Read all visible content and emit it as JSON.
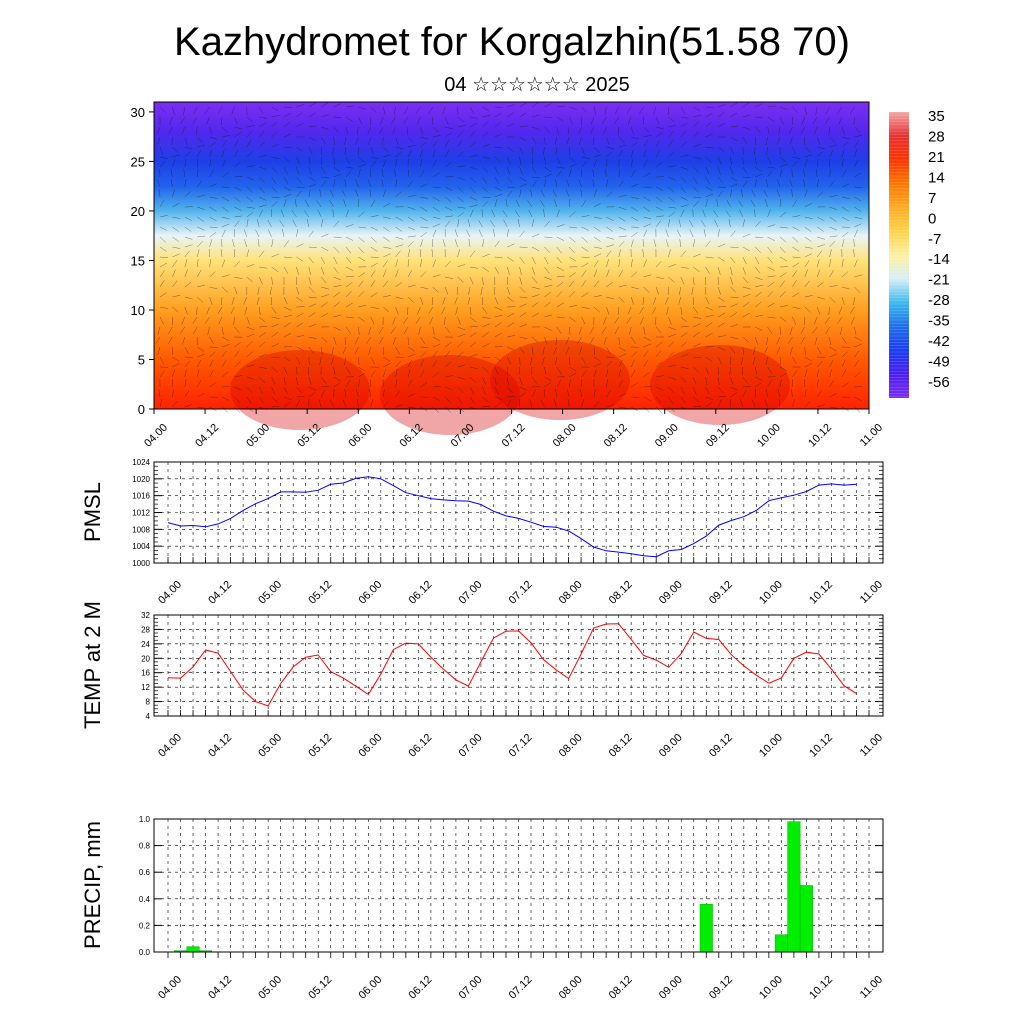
{
  "title": "Kazhydromet for Korgalzhin(51.58 70)",
  "subtitle": "04 ☆☆☆☆☆☆ 2025",
  "chart_data": [
    {
      "name": "cross-section",
      "type": "heatmap",
      "ylim": [
        0,
        31
      ],
      "yticks": [
        0,
        5,
        10,
        15,
        20,
        25,
        30
      ],
      "xticks": [
        "04.00",
        "04.12",
        "05.00",
        "05.12",
        "06.00",
        "06.12",
        "07.00",
        "07.12",
        "08.00",
        "08.12",
        "09.00",
        "09.12",
        "10.00",
        "10.12",
        "11.00"
      ],
      "colorbar_labels": [
        "35",
        "28",
        "21",
        "14",
        "7",
        "0",
        "-7",
        "-14",
        "-21",
        "-28",
        "-35",
        "-42",
        "-49",
        "-56"
      ],
      "colorbar_colors": [
        "#f2a6a6",
        "#e53030",
        "#ff3300",
        "#ff7700",
        "#ffaa22",
        "#ffd24a",
        "#fff0a0",
        "#d8eef8",
        "#3cb8ee",
        "#1e6ee8",
        "#1a3cf0",
        "#4a1ef0",
        "#7a2ef0"
      ],
      "layers": [
        {
          "level": 0,
          "color": "#ff2200"
        },
        {
          "level": 5,
          "color": "#ff5a00"
        },
        {
          "level": 10,
          "color": "#ff9f20"
        },
        {
          "level": 15,
          "color": "#ffe27a"
        },
        {
          "level": 17.5,
          "color": "#e8f4f8"
        },
        {
          "level": 20,
          "color": "#52b4ec"
        },
        {
          "level": 22.5,
          "color": "#2262ec"
        },
        {
          "level": 25,
          "color": "#1e3fe6"
        },
        {
          "level": 28,
          "color": "#5128ee"
        },
        {
          "level": 31,
          "color": "#7c2ef0"
        }
      ]
    },
    {
      "name": "pmsl",
      "type": "line",
      "ylabel": "PMSL",
      "ylim": [
        1000,
        1024
      ],
      "yticks": [
        1000,
        1004,
        1008,
        1012,
        1016,
        1020,
        1024
      ],
      "xticks": [
        "04.00",
        "04.12",
        "05.00",
        "05.12",
        "06.00",
        "06.12",
        "07.00",
        "07.12",
        "08.00",
        "08.12",
        "09.00",
        "09.12",
        "10.00",
        "10.12",
        "11.00"
      ],
      "color": "#0000ff",
      "x": [
        0,
        3,
        6,
        9,
        12,
        15,
        18,
        21,
        24,
        27,
        30,
        33,
        36,
        39,
        42,
        45,
        48,
        51,
        54,
        57,
        60,
        63,
        66,
        69,
        72,
        75,
        78,
        81,
        84,
        87,
        90,
        93,
        96,
        99,
        102,
        105,
        108,
        111,
        114,
        117,
        120,
        123,
        126,
        129,
        132,
        135,
        138,
        141,
        144,
        147,
        150,
        153,
        156,
        159,
        162,
        165
      ],
      "values": [
        1009.6,
        1008.8,
        1008.9,
        1008.6,
        1009.3,
        1010.6,
        1012.5,
        1014.1,
        1015.3,
        1016.9,
        1016.9,
        1016.8,
        1017.3,
        1018.7,
        1019.0,
        1020.1,
        1020.5,
        1020.0,
        1018.4,
        1016.7,
        1016.0,
        1015.3,
        1015.0,
        1014.8,
        1014.7,
        1013.9,
        1012.3,
        1011.2,
        1010.6,
        1009.7,
        1008.7,
        1008.5,
        1007.6,
        1005.8,
        1003.8,
        1002.9,
        1002.6,
        1002.2,
        1001.7,
        1001.5,
        1002.9,
        1003.2,
        1004.6,
        1006.4,
        1009.0,
        1010.1,
        1011.0,
        1012.5,
        1014.8,
        1015.5,
        1016.1,
        1017.0,
        1018.5,
        1018.8,
        1018.5,
        1018.7
      ]
    },
    {
      "name": "temp2m",
      "type": "line",
      "ylabel": "TEMP at 2 M",
      "ylim": [
        4,
        32
      ],
      "yticks": [
        4,
        8,
        12,
        16,
        20,
        24,
        28,
        32
      ],
      "xticks": [
        "04.00",
        "04.12",
        "05.00",
        "05.12",
        "06.00",
        "06.12",
        "07.00",
        "07.12",
        "08.00",
        "08.12",
        "09.00",
        "09.12",
        "10.00",
        "10.12",
        "11.00"
      ],
      "color": "#ff0000",
      "x": [
        0,
        3,
        6,
        9,
        12,
        15,
        18,
        21,
        24,
        27,
        30,
        33,
        36,
        39,
        42,
        45,
        48,
        51,
        54,
        57,
        60,
        63,
        66,
        69,
        72,
        75,
        78,
        81,
        84,
        87,
        90,
        93,
        96,
        99,
        102,
        105,
        108,
        111,
        114,
        117,
        120,
        123,
        126,
        129,
        132,
        135,
        138,
        141,
        144,
        147,
        150,
        153,
        156,
        159,
        162,
        165
      ],
      "values": [
        14.6,
        14.5,
        17.6,
        22.3,
        21.4,
        16.3,
        11.2,
        8.0,
        6.8,
        13.0,
        17.6,
        20.3,
        20.9,
        16.3,
        14.5,
        12.3,
        10.0,
        15.6,
        22.4,
        24.2,
        24.0,
        20.3,
        17.0,
        14.0,
        12.3,
        19.0,
        25.6,
        27.5,
        27.6,
        24.3,
        19.6,
        16.8,
        14.4,
        21.2,
        28.4,
        29.5,
        29.6,
        25.2,
        20.8,
        19.5,
        17.5,
        21.3,
        27.3,
        25.5,
        25.2,
        21.0,
        17.9,
        15.3,
        13.1,
        14.6,
        20.0,
        21.7,
        21.2,
        17.0,
        12.4,
        10.2
      ]
    },
    {
      "name": "precip",
      "type": "bar",
      "ylabel": "PRECIP, mm",
      "ylim": [
        0,
        1.0
      ],
      "yticks": [
        "0.0",
        "0.2",
        "0.4",
        "0.6",
        "0.8",
        "1.0"
      ],
      "xticks": [
        "04.00",
        "04.12",
        "05.00",
        "05.12",
        "06.00",
        "06.12",
        "07.00",
        "07.12",
        "08.00",
        "08.12",
        "09.00",
        "09.12",
        "10.00",
        "10.12",
        "11.00"
      ],
      "color": "#00ee00",
      "x": [
        0,
        3,
        6,
        9,
        12,
        15,
        18,
        21,
        24,
        27,
        30,
        33,
        36,
        39,
        42,
        45,
        48,
        51,
        54,
        57,
        60,
        63,
        66,
        69,
        72,
        75,
        78,
        81,
        84,
        87,
        90,
        93,
        96,
        99,
        102,
        105,
        108,
        111,
        114,
        117,
        120,
        123,
        126,
        129,
        132,
        135,
        138,
        141,
        144,
        147,
        150,
        153,
        156,
        159,
        162,
        165
      ],
      "values": [
        0,
        0.01,
        0.04,
        0.01,
        0,
        0,
        0,
        0,
        0,
        0,
        0,
        0,
        0,
        0,
        0,
        0,
        0,
        0,
        0,
        0,
        0,
        0,
        0,
        0,
        0,
        0,
        0,
        0,
        0,
        0,
        0,
        0,
        0,
        0,
        0,
        0,
        0,
        0,
        0,
        0,
        0,
        0,
        0,
        0.36,
        0,
        0,
        0,
        0,
        0,
        0.13,
        0.98,
        0.5,
        0,
        0,
        0,
        0
      ]
    }
  ]
}
